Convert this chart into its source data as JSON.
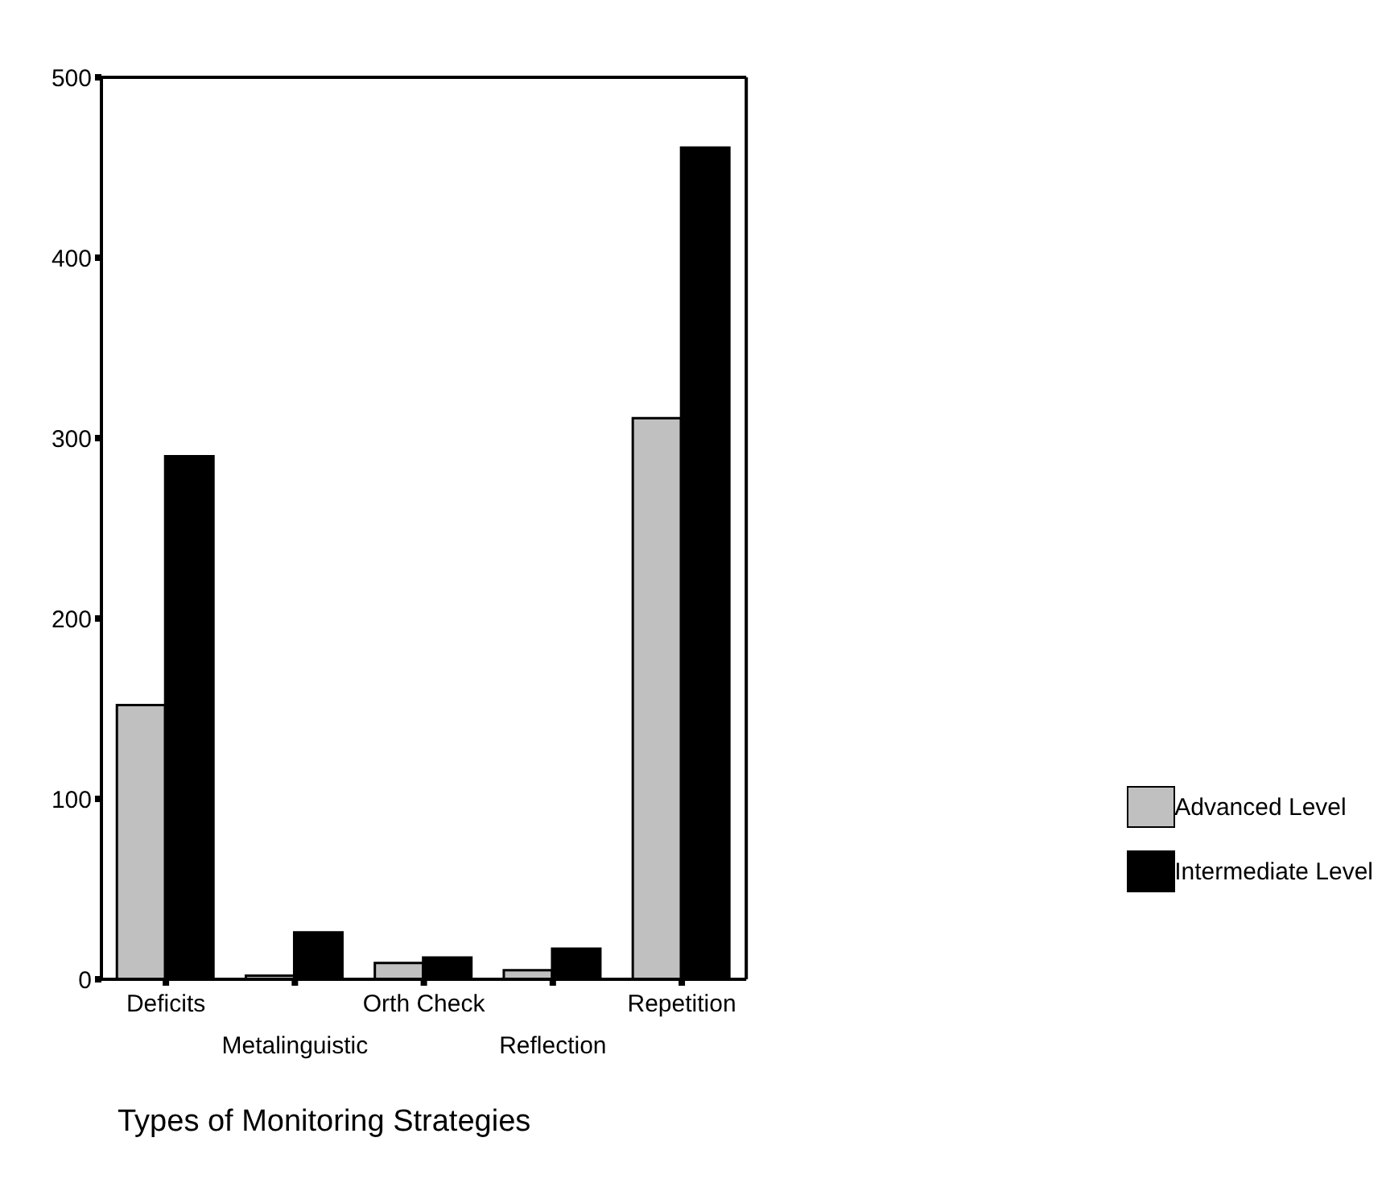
{
  "chart_data": {
    "type": "bar",
    "xlabel": "Types of Monitoring Strategies",
    "categories": [
      "Deficits",
      "Metalinguistic",
      "Orth Check",
      "Reflection",
      "Repetition"
    ],
    "series": [
      {
        "name": "Advanced Level",
        "color": "#c0c0c0",
        "values": [
          152,
          2,
          9,
          5,
          311
        ]
      },
      {
        "name": "Intermediate Level",
        "color": "#000000",
        "values": [
          290,
          26,
          12,
          17,
          461
        ]
      }
    ],
    "ylim": [
      0,
      500
    ],
    "yticks": [
      0,
      100,
      200,
      300,
      400,
      500
    ],
    "grid": false,
    "legend": "right"
  }
}
